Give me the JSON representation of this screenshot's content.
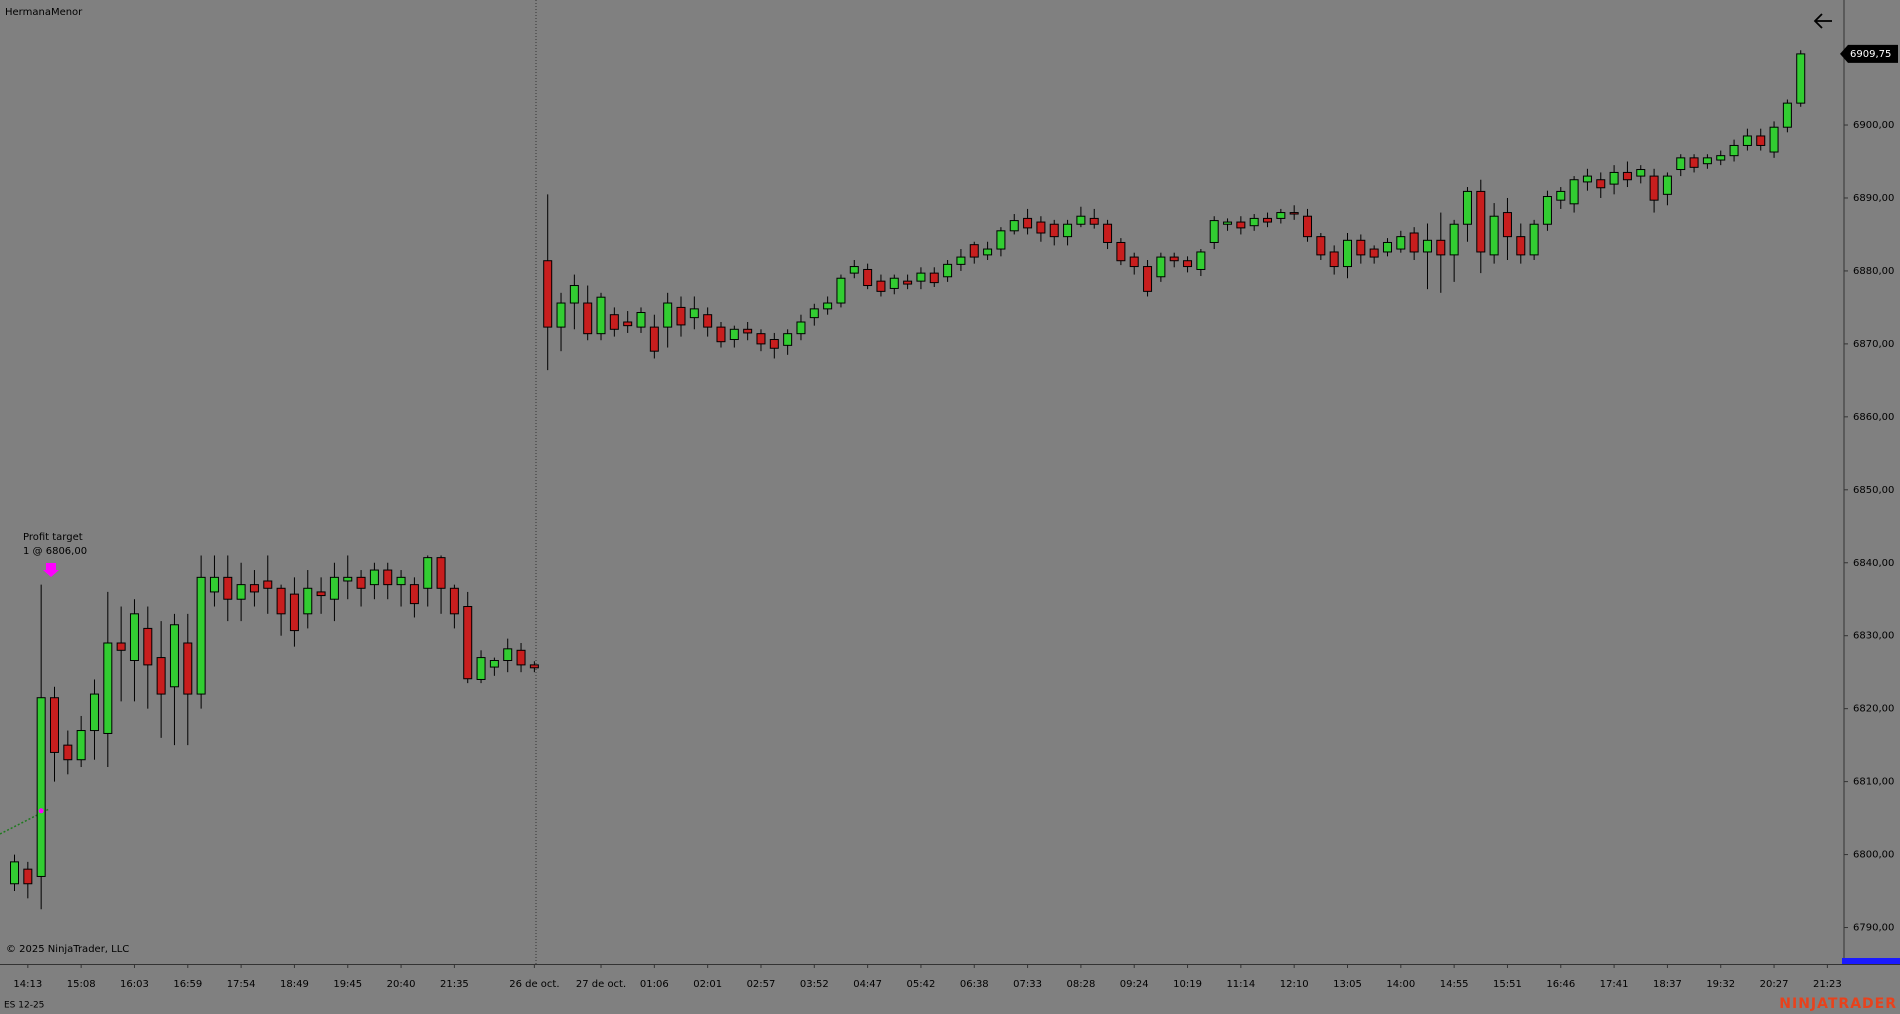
{
  "chart_data": {
    "type": "candlestick",
    "title": "HermanaMenor",
    "instrument": "ES 12-25",
    "copyright": "© 2025 NinjaTrader, LLC",
    "brand": "NINJATRADER",
    "annotation": {
      "lines": [
        "Profit target",
        "1 @ 6806,00"
      ],
      "price": 6806
    },
    "last_price": {
      "value": 6909.75,
      "label": "6909,75"
    },
    "up_color": "#32cd32",
    "down_color": "#c81e1e",
    "ylim": [
      6785,
      6917
    ],
    "yticks": [
      {
        "value": 6790,
        "label": "6790,00"
      },
      {
        "value": 6800,
        "label": "6800,00"
      },
      {
        "value": 6810,
        "label": "6810,00"
      },
      {
        "value": 6820,
        "label": "6820,00"
      },
      {
        "value": 6830,
        "label": "6830,00"
      },
      {
        "value": 6840,
        "label": "6840,00"
      },
      {
        "value": 6850,
        "label": "6850,00"
      },
      {
        "value": 6860,
        "label": "6860,00"
      },
      {
        "value": 6870,
        "label": "6870,00"
      },
      {
        "value": 6880,
        "label": "6880,00"
      },
      {
        "value": 6890,
        "label": "6890,00"
      },
      {
        "value": 6900,
        "label": "6900,00"
      }
    ],
    "categories": [
      null,
      "14:13",
      null,
      null,
      null,
      "15:08",
      null,
      null,
      null,
      "16:03",
      null,
      null,
      null,
      "16:59",
      null,
      null,
      null,
      "17:54",
      null,
      null,
      null,
      "18:49",
      null,
      null,
      null,
      "19:45",
      null,
      null,
      null,
      "20:40",
      null,
      null,
      null,
      "21:35",
      null,
      null,
      null,
      null,
      null,
      "26 de oct.",
      null,
      null,
      null,
      null,
      "27 de oct.",
      null,
      null,
      null,
      "01:06",
      null,
      null,
      null,
      "02:01",
      null,
      null,
      null,
      "02:57",
      null,
      null,
      null,
      "03:52",
      null,
      null,
      null,
      "04:47",
      null,
      null,
      null,
      "05:42",
      null,
      null,
      null,
      "06:38",
      null,
      null,
      null,
      "07:33",
      null,
      null,
      null,
      "08:28",
      null,
      null,
      null,
      "09:24",
      null,
      null,
      null,
      "10:19",
      null,
      null,
      null,
      "11:14",
      null,
      null,
      null,
      "12:10",
      null,
      null,
      null,
      "13:05",
      null,
      null,
      null,
      "14:00",
      null,
      null,
      null,
      "14:55",
      null,
      null,
      null,
      "15:51",
      null,
      null,
      null,
      "16:46",
      null,
      null,
      null,
      "17:41",
      null,
      null,
      null,
      "18:37",
      null,
      null,
      null,
      "19:32",
      null,
      null,
      null,
      "20:27",
      null,
      null,
      null,
      "21:23"
    ],
    "values": [
      [
        6796,
        6800,
        6795,
        6799
      ],
      [
        6798,
        6799,
        6794,
        6796
      ],
      [
        6797,
        6837,
        6792.5,
        6821.5
      ],
      [
        6821.5,
        6823,
        6810,
        6814
      ],
      [
        6815,
        6817,
        6811,
        6813
      ],
      [
        6813,
        6819,
        6812,
        6817
      ],
      [
        6817,
        6824,
        6813,
        6822
      ],
      [
        6816.6,
        6836,
        6812,
        6829
      ],
      [
        6829,
        6834,
        6821,
        6828
      ],
      [
        6826.6,
        6835,
        6821,
        6833
      ],
      [
        6831,
        6834,
        6820,
        6826
      ],
      [
        6827,
        6832,
        6816,
        6822
      ],
      [
        6823,
        6833,
        6815,
        6831.5
      ],
      [
        6829,
        6833,
        6815,
        6822
      ],
      [
        6822,
        6841,
        6820,
        6838
      ],
      [
        6836,
        6841,
        6834,
        6838
      ],
      [
        6838,
        6841,
        6832,
        6835
      ],
      [
        6835,
        6840,
        6832,
        6837
      ],
      [
        6837,
        6839,
        6834,
        6836
      ],
      [
        6837.5,
        6841,
        6833,
        6836.5
      ],
      [
        6836.5,
        6837,
        6830,
        6833
      ],
      [
        6835.7,
        6838,
        6828.5,
        6830.7
      ],
      [
        6833,
        6839,
        6831,
        6836.5
      ],
      [
        6836,
        6838,
        6833,
        6835.5
      ],
      [
        6835,
        6840,
        6832,
        6838
      ],
      [
        6837.5,
        6841,
        6835,
        6838
      ],
      [
        6838,
        6839,
        6834,
        6836.5
      ],
      [
        6837,
        6840,
        6835,
        6839
      ],
      [
        6839,
        6840,
        6835,
        6837
      ],
      [
        6837,
        6839,
        6834,
        6838
      ],
      [
        6837,
        6838,
        6832.5,
        6834.4
      ],
      [
        6836.5,
        6841,
        6834,
        6840.7
      ],
      [
        6840.7,
        6841,
        6833,
        6836.5
      ],
      [
        6836.5,
        6837,
        6831,
        6833
      ],
      [
        6834,
        6836,
        6823.5,
        6824.1
      ],
      [
        6824,
        6828,
        6823.5,
        6827
      ],
      [
        6825.7,
        6827,
        6824.5,
        6826.6
      ],
      [
        6826.6,
        6829.6,
        6825,
        6828.2
      ],
      [
        6828,
        6829,
        6825,
        6826
      ],
      [
        6826,
        6826.5,
        6825,
        6825.6
      ],
      [
        6881.4,
        6890.5,
        6866.4,
        6872.3
      ],
      [
        6872.3,
        6877,
        6869,
        6875.6
      ],
      [
        6875.6,
        6879.5,
        6872,
        6878
      ],
      [
        6875.6,
        6878,
        6870.5,
        6871.4
      ],
      [
        6871.4,
        6877,
        6870.5,
        6876.4
      ],
      [
        6874,
        6875,
        6871,
        6872
      ],
      [
        6873,
        6874.5,
        6871.5,
        6872.5
      ],
      [
        6872.3,
        6875,
        6871.5,
        6874.3
      ],
      [
        6872.3,
        6874,
        6868,
        6869
      ],
      [
        6872.3,
        6877,
        6869.5,
        6875.6
      ],
      [
        6875,
        6876.5,
        6871,
        6872.6
      ],
      [
        6873.6,
        6876.5,
        6872,
        6874.8
      ],
      [
        6874,
        6875,
        6871,
        6872.3
      ],
      [
        6872.3,
        6873,
        6869.5,
        6870.3
      ],
      [
        6870.6,
        6872.5,
        6869.5,
        6872
      ],
      [
        6872,
        6873,
        6870.5,
        6871.5
      ],
      [
        6871.4,
        6872,
        6869,
        6870
      ],
      [
        6870.6,
        6871.5,
        6868,
        6869.4
      ],
      [
        6869.8,
        6872,
        6868.5,
        6871.4
      ],
      [
        6871.4,
        6874,
        6870.5,
        6873
      ],
      [
        6873.6,
        6875.5,
        6872.5,
        6874.8
      ],
      [
        6874.8,
        6876.5,
        6874,
        6875.6
      ],
      [
        6875.6,
        6879.5,
        6875,
        6879
      ],
      [
        6879.7,
        6881.5,
        6879,
        6880.6
      ],
      [
        6880.2,
        6881,
        6877.5,
        6878
      ],
      [
        6878.6,
        6879.5,
        6876.5,
        6877.2
      ],
      [
        6877.6,
        6879.5,
        6876.8,
        6879
      ],
      [
        6878.6,
        6879.5,
        6877.5,
        6878.2
      ],
      [
        6878.6,
        6880.5,
        6877.5,
        6879.7
      ],
      [
        6879.7,
        6880.5,
        6877.8,
        6878.4
      ],
      [
        6879.2,
        6881.5,
        6878.5,
        6880.9
      ],
      [
        6880.9,
        6883,
        6880,
        6881.9
      ],
      [
        6883.6,
        6884,
        6881,
        6881.9
      ],
      [
        6882.2,
        6884,
        6881.5,
        6883
      ],
      [
        6883,
        6886,
        6882,
        6885.5
      ],
      [
        6885.5,
        6887.8,
        6885,
        6886.9
      ],
      [
        6887.2,
        6888.5,
        6885,
        6885.9
      ],
      [
        6886.7,
        6887.5,
        6884,
        6885.2
      ],
      [
        6886.4,
        6887,
        6883.5,
        6884.7
      ],
      [
        6884.7,
        6887,
        6883.5,
        6886.4
      ],
      [
        6886.4,
        6888.8,
        6886,
        6887.5
      ],
      [
        6887.2,
        6888.5,
        6885.8,
        6886.4
      ],
      [
        6886.4,
        6887,
        6883,
        6883.9
      ],
      [
        6883.9,
        6884.5,
        6880.8,
        6881.4
      ],
      [
        6881.9,
        6882.5,
        6879.5,
        6880.6
      ],
      [
        6880.6,
        6881.5,
        6876.5,
        6877.2
      ],
      [
        6879.2,
        6882.5,
        6878.5,
        6881.9
      ],
      [
        6881.9,
        6882.5,
        6880.5,
        6881.4
      ],
      [
        6881.4,
        6882,
        6879.8,
        6880.6
      ],
      [
        6880.2,
        6883,
        6879.3,
        6882.6
      ],
      [
        6883.9,
        6887.5,
        6883,
        6886.9
      ],
      [
        6886.4,
        6887.2,
        6885.5,
        6886.7
      ],
      [
        6886.7,
        6887.5,
        6885,
        6885.9
      ],
      [
        6886.2,
        6887.8,
        6885.5,
        6887.2
      ],
      [
        6887.2,
        6888,
        6886,
        6886.7
      ],
      [
        6887.2,
        6888.5,
        6886.5,
        6888
      ],
      [
        6888,
        6889,
        6887,
        6887.8
      ],
      [
        6887.5,
        6888.5,
        6884,
        6884.7
      ],
      [
        6884.7,
        6885.2,
        6881.5,
        6882.2
      ],
      [
        6882.6,
        6883.5,
        6879.5,
        6880.6
      ],
      [
        6880.6,
        6885.2,
        6879,
        6884.2
      ],
      [
        6884.2,
        6885,
        6881,
        6882.2
      ],
      [
        6883,
        6883.5,
        6881,
        6881.9
      ],
      [
        6882.6,
        6884.5,
        6882,
        6883.9
      ],
      [
        6883,
        6885.5,
        6882.5,
        6884.7
      ],
      [
        6885.2,
        6886,
        6881.5,
        6882.6
      ],
      [
        6882.6,
        6886.5,
        6877.5,
        6884.2
      ],
      [
        6884.2,
        6888,
        6877,
        6882.2
      ],
      [
        6882.2,
        6887,
        6878.5,
        6886.4
      ],
      [
        6886.4,
        6891.5,
        6884,
        6890.9
      ],
      [
        6890.9,
        6892.5,
        6879.7,
        6882.6
      ],
      [
        6882.2,
        6889.3,
        6881,
        6887.5
      ],
      [
        6888,
        6890,
        6881.5,
        6884.7
      ],
      [
        6884.7,
        6886.5,
        6881,
        6882.2
      ],
      [
        6882.2,
        6887,
        6881.5,
        6886.4
      ],
      [
        6886.4,
        6891,
        6885.5,
        6890.2
      ],
      [
        6889.7,
        6891.5,
        6888.5,
        6890.9
      ],
      [
        6889.2,
        6893,
        6888,
        6892.5
      ],
      [
        6892.2,
        6894,
        6891,
        6893
      ],
      [
        6892.5,
        6893.5,
        6890,
        6891.4
      ],
      [
        6891.9,
        6894.5,
        6890.5,
        6893.5
      ],
      [
        6893.5,
        6895,
        6891.5,
        6892.5
      ],
      [
        6893,
        6894.5,
        6892,
        6893.9
      ],
      [
        6893,
        6894,
        6888,
        6889.7
      ],
      [
        6890.5,
        6893.5,
        6889,
        6893
      ],
      [
        6893.9,
        6896,
        6893,
        6895.5
      ],
      [
        6895.5,
        6896,
        6893.5,
        6894.2
      ],
      [
        6894.7,
        6896,
        6894,
        6895.5
      ],
      [
        6895.2,
        6896.5,
        6894.5,
        6895.8
      ],
      [
        6895.8,
        6898,
        6895,
        6897.2
      ],
      [
        6897.2,
        6899.5,
        6896.5,
        6898.5
      ],
      [
        6898.5,
        6899.5,
        6896.5,
        6897.2
      ],
      [
        6896.3,
        6900.5,
        6895.5,
        6899.7
      ],
      [
        6899.7,
        6903.5,
        6899,
        6903
      ],
      [
        6903,
        6910.25,
        6902.5,
        6909.75
      ],
      null,
      null
    ]
  }
}
